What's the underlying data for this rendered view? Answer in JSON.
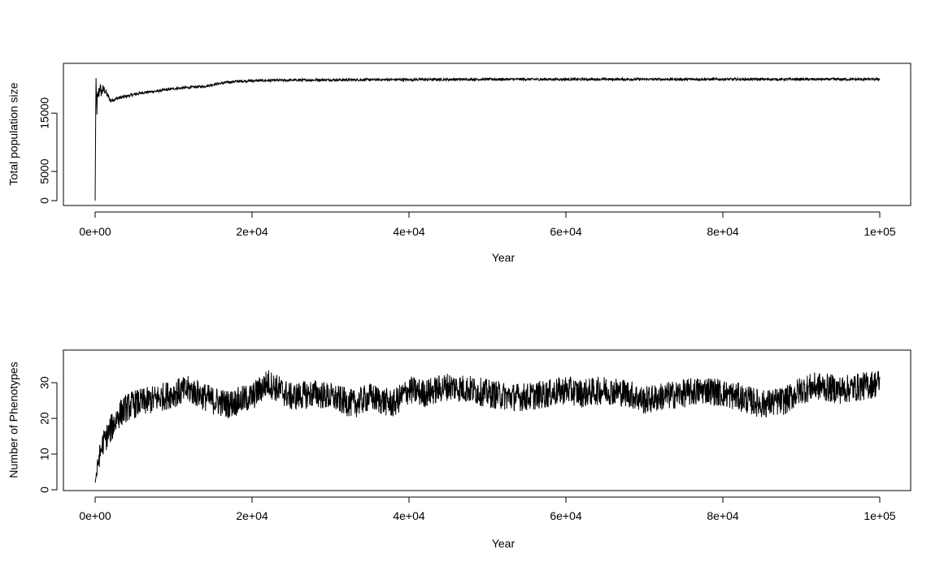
{
  "chart_data": [
    {
      "type": "line",
      "title": "",
      "xlabel": "Year",
      "ylabel": "Total population size",
      "xlim": [
        0,
        100000
      ],
      "ylim": [
        0,
        22000
      ],
      "x_ticks": [
        0,
        20000,
        40000,
        60000,
        80000,
        100000
      ],
      "x_tick_labels": [
        "0e+00",
        "2e+04",
        "4e+04",
        "6e+04",
        "8e+04",
        "1e+05"
      ],
      "y_ticks": [
        0,
        5000,
        15000
      ],
      "y_tick_labels": [
        "0",
        "5000",
        "15000"
      ],
      "grid": false,
      "line_color": "#000000",
      "series": [
        {
          "x": [
            0,
            100,
            200,
            400,
            600,
            800,
            1000,
            1200,
            1500,
            2000,
            2500,
            3000,
            4000,
            5000,
            6000,
            8000,
            10000,
            12000,
            14000,
            15000,
            16000,
            17000,
            18000,
            20000,
            25000,
            30000,
            40000,
            50000,
            60000,
            70000,
            80000,
            90000,
            100000
          ],
          "y_mid": [
            0,
            20000,
            16000,
            18000,
            19500,
            18500,
            19000,
            19000,
            18200,
            17100,
            17400,
            17600,
            17900,
            18200,
            18500,
            18800,
            19200,
            19400,
            19600,
            19900,
            20100,
            20300,
            20450,
            20550,
            20650,
            20700,
            20750,
            20800,
            20800,
            20800,
            20800,
            20800,
            20800
          ],
          "y_noise": [
            0,
            1500,
            2500,
            1500,
            1200,
            900,
            800,
            700,
            500,
            350,
            300,
            280,
            260,
            250,
            240,
            230,
            220,
            220,
            220,
            220,
            220,
            220,
            220,
            220,
            220,
            220,
            220,
            220,
            220,
            220,
            220,
            220,
            220
          ]
        }
      ]
    },
    {
      "type": "line",
      "title": "",
      "xlabel": "Year",
      "ylabel": "Number of Phenotypes",
      "xlim": [
        0,
        100000
      ],
      "ylim": [
        0,
        38
      ],
      "x_ticks": [
        0,
        20000,
        40000,
        60000,
        80000,
        100000
      ],
      "x_tick_labels": [
        "0e+00",
        "2e+04",
        "4e+04",
        "6e+04",
        "8e+04",
        "1e+05"
      ],
      "y_ticks": [
        0,
        10,
        20,
        30
      ],
      "y_tick_labels": [
        "0",
        "10",
        "20",
        "30"
      ],
      "grid": false,
      "line_color": "#000000",
      "series": [
        {
          "x": [
            0,
            500,
            1000,
            2000,
            3000,
            4000,
            5000,
            7000,
            10000,
            12000,
            15000,
            17000,
            20000,
            22000,
            25000,
            28000,
            30000,
            33000,
            35000,
            38000,
            40000,
            42000,
            45000,
            48000,
            50000,
            53000,
            55000,
            58000,
            60000,
            62000,
            65000,
            68000,
            70000,
            72000,
            75000,
            78000,
            80000,
            82000,
            85000,
            88000,
            90000,
            92000,
            95000,
            98000,
            100000
          ],
          "y_mid": [
            2,
            9,
            13,
            17,
            21,
            23,
            24,
            25,
            27,
            28,
            25,
            24,
            26,
            30,
            26,
            27,
            26,
            24,
            26,
            24,
            28,
            27,
            29,
            28,
            27,
            26,
            26,
            27,
            28,
            27,
            28,
            27,
            25,
            26,
            27,
            28,
            27,
            26,
            24,
            25,
            28,
            29,
            28,
            29,
            30
          ],
          "y_noise": [
            1.5,
            3,
            3.5,
            4,
            4,
            4,
            4,
            4,
            4,
            4,
            4,
            4,
            4,
            4,
            4,
            4,
            4,
            4,
            4,
            4,
            4,
            4,
            4,
            4,
            4,
            4,
            4,
            4,
            4,
            4,
            4,
            4,
            4,
            4,
            4,
            4,
            4,
            4,
            4,
            4,
            4,
            4,
            4,
            4,
            4
          ]
        }
      ]
    }
  ]
}
